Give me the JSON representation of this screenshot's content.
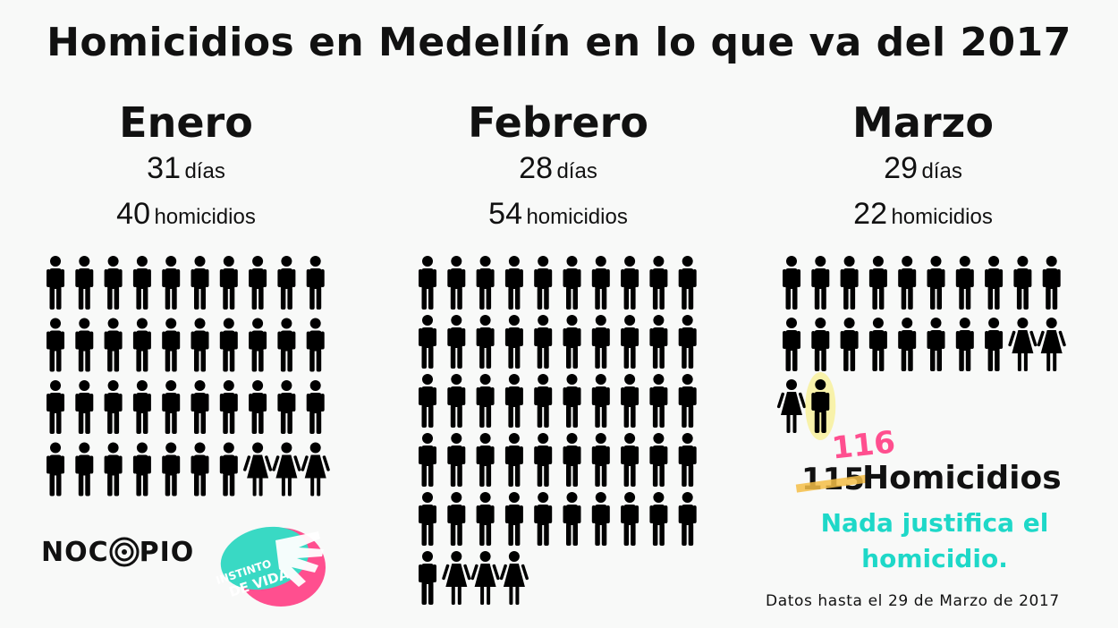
{
  "chart_data": {
    "type": "pictogram",
    "title": "Homicidios en Medellín en lo que va del 2017",
    "months": [
      {
        "name": "Enero",
        "days": "31",
        "days_unit": "días",
        "homicides": "40",
        "homicides_unit": "homicidios",
        "male": 37,
        "female": 3,
        "extra": 0
      },
      {
        "name": "Febrero",
        "days": "28",
        "days_unit": "días",
        "homicides": "54",
        "homicides_unit": "homicidios",
        "male": 51,
        "female": 3,
        "extra": 0
      },
      {
        "name": "Marzo",
        "days": "29",
        "days_unit": "días",
        "homicides": "22",
        "homicides_unit": "homicidios",
        "male": 18,
        "female": 3,
        "extra": 1
      }
    ],
    "total_old": "115",
    "total_new": "116",
    "total_label": "Homicidios",
    "colors": {
      "figure": "#000000",
      "highlight": "#f7ec6a",
      "new_total": "#ff4f8f",
      "message": "#1ed8c8",
      "strike": "#f5be46"
    }
  },
  "message": "Nada justifica el homicidio.",
  "source": "Datos hasta el 29 de Marzo de 2017",
  "logos": {
    "nocopio_left": "NOC",
    "nocopio_right": "PIO",
    "instinto_line1": "INSTINTO",
    "instinto_line2": "DE VIDA"
  }
}
